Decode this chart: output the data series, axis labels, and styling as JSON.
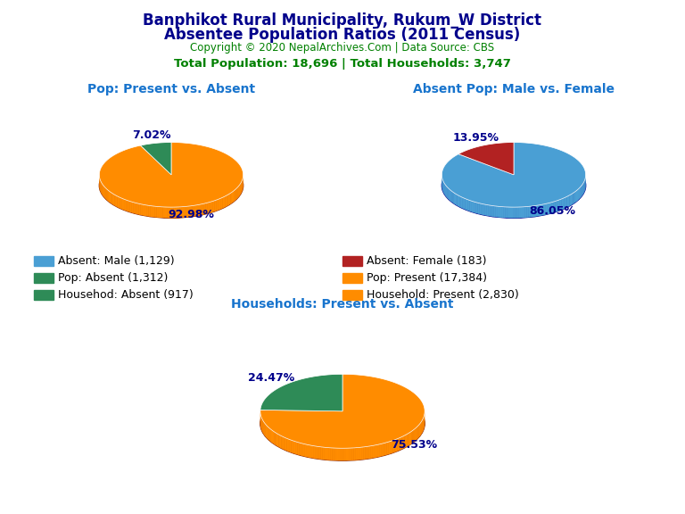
{
  "title_line1": "Banphikot Rural Municipality, Rukum_W District",
  "title_line2": "Absentee Population Ratios (2011 Census)",
  "copyright": "Copyright © 2020 NepalArchives.Com | Data Source: CBS",
  "stats": "Total Population: 18,696 | Total Households: 3,747",
  "title_color": "#00008B",
  "copyright_color": "#008000",
  "stats_color": "#008000",
  "subtitle_color": "#1874CD",
  "pie1_title": "Pop: Present vs. Absent",
  "pie1_values": [
    92.98,
    7.02
  ],
  "pie1_colors": [
    "#FF8C00",
    "#2E8B57"
  ],
  "pie1_shadow_color": "#8B2500",
  "pie1_labels": [
    "92.98%",
    "7.02%"
  ],
  "pie2_title": "Absent Pop: Male vs. Female",
  "pie2_values": [
    86.05,
    13.95
  ],
  "pie2_colors": [
    "#4A9FD4",
    "#B22222"
  ],
  "pie2_shadow_color": "#00008B",
  "pie2_labels": [
    "86.05%",
    "13.95%"
  ],
  "pie3_title": "Households: Present vs. Absent",
  "pie3_values": [
    75.53,
    24.47
  ],
  "pie3_colors": [
    "#FF8C00",
    "#2E8B57"
  ],
  "pie3_shadow_color": "#8B2500",
  "pie3_labels": [
    "75.53%",
    "24.47%"
  ],
  "legend_items": [
    {
      "label": "Absent: Male (1,129)",
      "color": "#4A9FD4"
    },
    {
      "label": "Absent: Female (183)",
      "color": "#B22222"
    },
    {
      "label": "Pop: Absent (1,312)",
      "color": "#2E8B57"
    },
    {
      "label": "Pop: Present (17,384)",
      "color": "#FF8C00"
    },
    {
      "label": "Househod: Absent (917)",
      "color": "#2E8B57"
    },
    {
      "label": "Household: Present (2,830)",
      "color": "#FF8C00"
    }
  ],
  "label_color": "#00008B",
  "background_color": "#FFFFFF"
}
